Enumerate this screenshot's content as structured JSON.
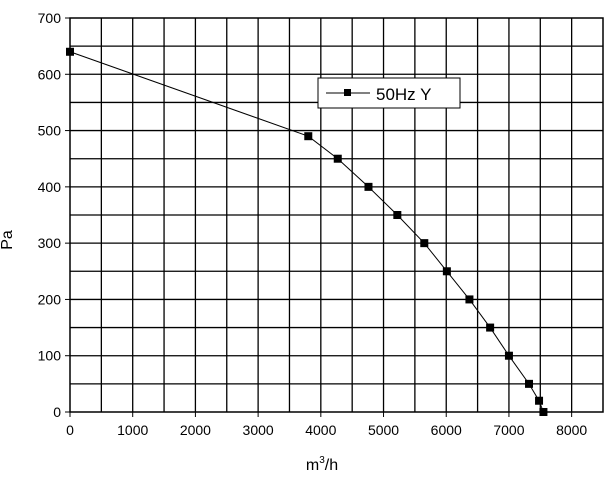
{
  "chart_data": {
    "type": "line",
    "xlabel": "m",
    "xlabel_sup": "3",
    "xlabel_suffix": "/h",
    "ylabel": "Pa",
    "xlim": [
      0,
      8500
    ],
    "ylim": [
      0,
      700
    ],
    "x_ticks": [
      0,
      1000,
      2000,
      3000,
      4000,
      5000,
      6000,
      7000,
      8000
    ],
    "y_ticks": [
      0,
      100,
      200,
      300,
      400,
      500,
      600,
      700
    ],
    "grid": true,
    "grid_step_x": 500,
    "grid_step_y": 50,
    "legend_position": "top-center",
    "series": [
      {
        "name": "50Hz  Y",
        "color": "#000000",
        "marker": "square",
        "x": [
          0,
          3800,
          4270,
          4760,
          5220,
          5650,
          6010,
          6370,
          6700,
          7000,
          7320,
          7480,
          7550
        ],
        "y": [
          640,
          490,
          450,
          400,
          350,
          300,
          250,
          200,
          150,
          100,
          50,
          20,
          0
        ]
      }
    ]
  }
}
